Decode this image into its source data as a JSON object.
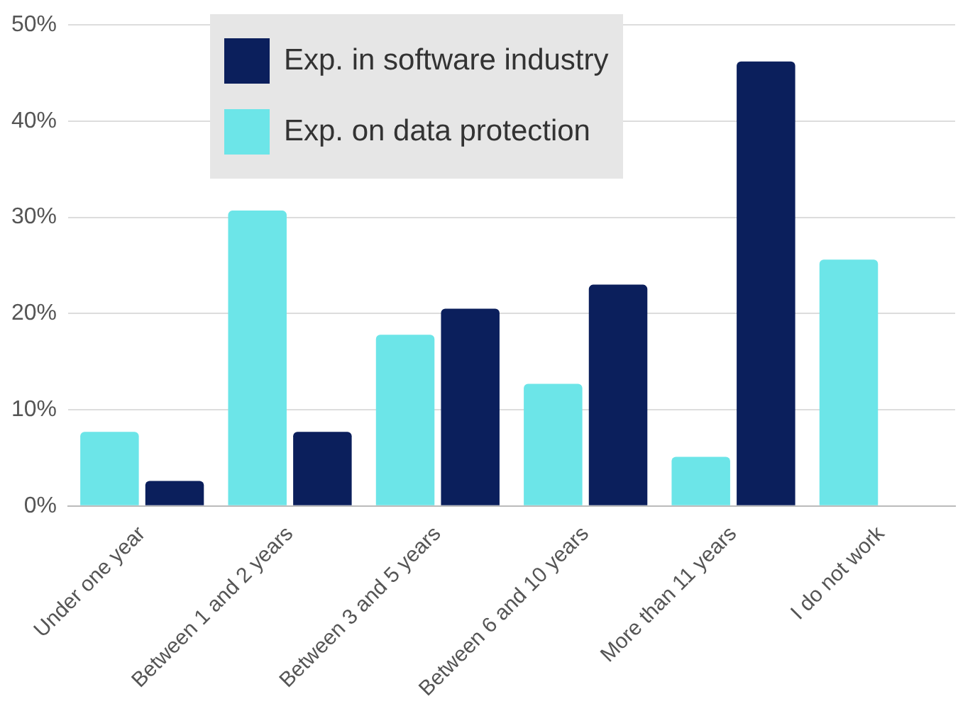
{
  "chart_data": {
    "type": "bar",
    "categories": [
      "Under one year",
      "Between 1 and 2 years",
      "Between 3 and 5 years",
      "Between 6 and 10 years",
      "More than 11 years",
      "I do not work"
    ],
    "series": [
      {
        "name": "Exp. on data protection",
        "color": "#6ce5e8",
        "values": [
          7.7,
          30.7,
          17.8,
          12.7,
          5.1,
          25.6
        ]
      },
      {
        "name": "Exp. in software industry",
        "color": "#0b1f5c",
        "values": [
          2.6,
          7.7,
          20.5,
          23.0,
          46.2,
          null
        ]
      }
    ],
    "ylim": [
      0,
      50
    ],
    "yticks": [
      {
        "value": 0,
        "label": "0%"
      },
      {
        "value": 10,
        "label": "10%"
      },
      {
        "value": 20,
        "label": "20%"
      },
      {
        "value": 30,
        "label": "30%"
      },
      {
        "value": 40,
        "label": "40%"
      },
      {
        "value": 50,
        "label": "50%"
      }
    ],
    "grid": "y",
    "legend": "top left"
  }
}
